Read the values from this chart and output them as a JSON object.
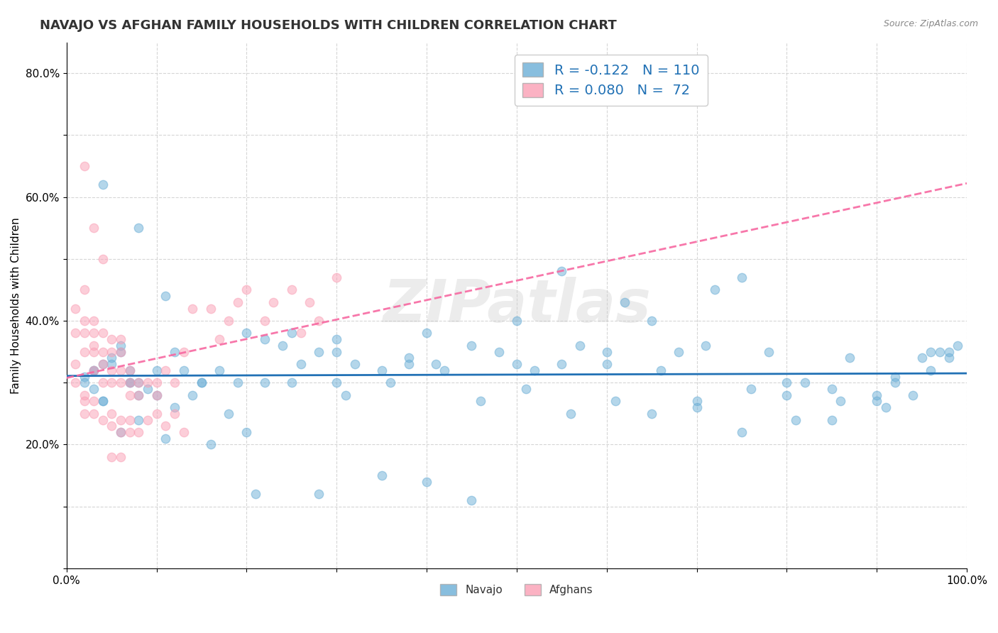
{
  "title": "NAVAJO VS AFGHAN FAMILY HOUSEHOLDS WITH CHILDREN CORRELATION CHART",
  "source_text": "Source: ZipAtlas.com",
  "ylabel": "Family Households with Children",
  "watermark": "ZIPatlas",
  "navajo_color": "#6baed6",
  "afghan_color": "#fa9fb5",
  "trend_navajo_color": "#2171b5",
  "trend_afghan_color": "#f768a1",
  "R_navajo": -0.122,
  "N_navajo": 110,
  "R_afghan": 0.08,
  "N_afghan": 72,
  "xlim": [
    0.0,
    1.0
  ],
  "ylim": [
    0.0,
    0.85
  ],
  "legend_box_color": "#ffffff",
  "legend_border_color": "#cccccc",
  "grid_color": "#cccccc",
  "background_color": "#ffffff",
  "title_fontsize": 13,
  "label_fontsize": 11,
  "tick_fontsize": 11,
  "legend_fontsize": 14,
  "marker_size": 80,
  "marker_alpha": 0.5,
  "watermark_alpha": 0.15,
  "watermark_fontsize": 60,
  "navajo_x": [
    0.03,
    0.04,
    0.05,
    0.06,
    0.07,
    0.08,
    0.02,
    0.03,
    0.04,
    0.05,
    0.06,
    0.07,
    0.08,
    0.09,
    0.1,
    0.11,
    0.12,
    0.13,
    0.15,
    0.17,
    0.2,
    0.22,
    0.25,
    0.28,
    0.3,
    0.32,
    0.35,
    0.38,
    0.4,
    0.42,
    0.45,
    0.48,
    0.5,
    0.52,
    0.55,
    0.57,
    0.6,
    0.62,
    0.65,
    0.68,
    0.7,
    0.72,
    0.75,
    0.78,
    0.8,
    0.82,
    0.85,
    0.87,
    0.9,
    0.92,
    0.95,
    0.97,
    0.98,
    0.99,
    0.02,
    0.03,
    0.04,
    0.06,
    0.08,
    0.1,
    0.12,
    0.15,
    0.18,
    0.2,
    0.22,
    0.25,
    0.28,
    0.3,
    0.35,
    0.4,
    0.45,
    0.5,
    0.55,
    0.6,
    0.65,
    0.7,
    0.75,
    0.8,
    0.85,
    0.9,
    0.92,
    0.94,
    0.96,
    0.98,
    0.04,
    0.07,
    0.11,
    0.16,
    0.21,
    0.26,
    0.31,
    0.36,
    0.41,
    0.46,
    0.51,
    0.56,
    0.61,
    0.66,
    0.71,
    0.76,
    0.81,
    0.86,
    0.91,
    0.96,
    0.08,
    0.14,
    0.19,
    0.24,
    0.3,
    0.38
  ],
  "navajo_y": [
    0.32,
    0.33,
    0.34,
    0.35,
    0.3,
    0.28,
    0.31,
    0.29,
    0.27,
    0.33,
    0.36,
    0.32,
    0.3,
    0.29,
    0.32,
    0.44,
    0.35,
    0.32,
    0.3,
    0.32,
    0.38,
    0.37,
    0.3,
    0.35,
    0.37,
    0.33,
    0.32,
    0.33,
    0.38,
    0.32,
    0.36,
    0.35,
    0.33,
    0.32,
    0.48,
    0.36,
    0.33,
    0.43,
    0.4,
    0.35,
    0.27,
    0.45,
    0.47,
    0.35,
    0.3,
    0.3,
    0.29,
    0.34,
    0.28,
    0.31,
    0.34,
    0.35,
    0.34,
    0.36,
    0.3,
    0.32,
    0.27,
    0.22,
    0.24,
    0.28,
    0.26,
    0.3,
    0.25,
    0.22,
    0.3,
    0.38,
    0.12,
    0.3,
    0.15,
    0.14,
    0.11,
    0.4,
    0.33,
    0.35,
    0.25,
    0.26,
    0.22,
    0.28,
    0.24,
    0.27,
    0.3,
    0.28,
    0.32,
    0.35,
    0.62,
    0.3,
    0.21,
    0.2,
    0.12,
    0.33,
    0.28,
    0.3,
    0.33,
    0.27,
    0.29,
    0.25,
    0.27,
    0.32,
    0.36,
    0.29,
    0.24,
    0.27,
    0.26,
    0.35,
    0.55,
    0.28,
    0.3,
    0.36,
    0.35,
    0.34
  ],
  "afghan_x": [
    0.01,
    0.01,
    0.02,
    0.02,
    0.02,
    0.02,
    0.03,
    0.03,
    0.03,
    0.03,
    0.03,
    0.04,
    0.04,
    0.04,
    0.04,
    0.05,
    0.05,
    0.05,
    0.05,
    0.06,
    0.06,
    0.06,
    0.06,
    0.07,
    0.07,
    0.07,
    0.08,
    0.08,
    0.09,
    0.1,
    0.1,
    0.11,
    0.12,
    0.13,
    0.14,
    0.16,
    0.17,
    0.18,
    0.19,
    0.2,
    0.22,
    0.23,
    0.25,
    0.26,
    0.27,
    0.28,
    0.3,
    0.01,
    0.01,
    0.02,
    0.02,
    0.02,
    0.03,
    0.03,
    0.04,
    0.05,
    0.05,
    0.06,
    0.06,
    0.07,
    0.07,
    0.08,
    0.09,
    0.1,
    0.11,
    0.12,
    0.13,
    0.02,
    0.03,
    0.04,
    0.05,
    0.06
  ],
  "afghan_y": [
    0.38,
    0.42,
    0.35,
    0.4,
    0.45,
    0.38,
    0.32,
    0.35,
    0.36,
    0.38,
    0.4,
    0.3,
    0.33,
    0.35,
    0.38,
    0.3,
    0.32,
    0.35,
    0.37,
    0.3,
    0.32,
    0.35,
    0.37,
    0.28,
    0.3,
    0.32,
    0.28,
    0.3,
    0.3,
    0.28,
    0.3,
    0.32,
    0.3,
    0.35,
    0.42,
    0.42,
    0.37,
    0.4,
    0.43,
    0.45,
    0.4,
    0.43,
    0.45,
    0.38,
    0.43,
    0.4,
    0.47,
    0.33,
    0.3,
    0.27,
    0.25,
    0.28,
    0.25,
    0.27,
    0.24,
    0.23,
    0.25,
    0.22,
    0.24,
    0.22,
    0.24,
    0.22,
    0.24,
    0.25,
    0.23,
    0.25,
    0.22,
    0.65,
    0.55,
    0.5,
    0.18,
    0.18
  ]
}
